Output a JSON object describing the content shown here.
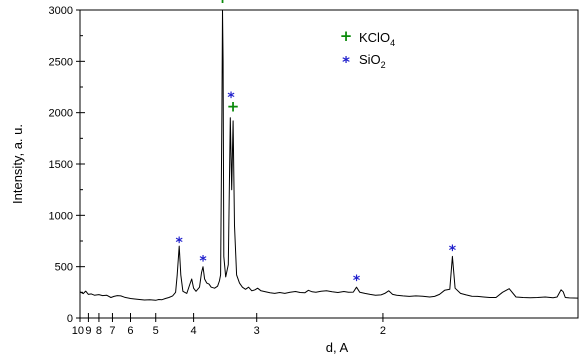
{
  "chart_data": {
    "type": "line",
    "title": "",
    "xlabel": "d, A",
    "ylabel": "Intensity, a. u.",
    "x_scale": "reciprocal",
    "xlim": [
      10,
      1.32
    ],
    "ylim": [
      0,
      3000
    ],
    "y_ticks": [
      0,
      500,
      1000,
      1500,
      2000,
      2500,
      3000
    ],
    "x_ticks": [
      10,
      9,
      8,
      7,
      6,
      5,
      4,
      3,
      2
    ],
    "x_tick_labels": [
      "10",
      "9",
      "8",
      "7",
      "6",
      "5",
      "4",
      "3",
      "2"
    ],
    "grid": false,
    "line_color": "#000000",
    "legend_position": "top-right",
    "legend": [
      {
        "symbol": "+",
        "color": "#0a8a0a",
        "label": "KClO",
        "sub": "4"
      },
      {
        "symbol": "*",
        "color": "#1f1fcc",
        "label": "SiO",
        "sub": "2"
      }
    ],
    "series": [
      {
        "points": [
          [
            10,
            255
          ],
          [
            9.6,
            238
          ],
          [
            9.3,
            262
          ],
          [
            9.0,
            230
          ],
          [
            8.7,
            235
          ],
          [
            8.4,
            222
          ],
          [
            8.0,
            228
          ],
          [
            7.7,
            218
          ],
          [
            7.4,
            222
          ],
          [
            7.1,
            200
          ],
          [
            6.9,
            210
          ],
          [
            6.7,
            218
          ],
          [
            6.5,
            215
          ],
          [
            6.3,
            203
          ],
          [
            6.0,
            190
          ],
          [
            5.8,
            185
          ],
          [
            5.6,
            180
          ],
          [
            5.4,
            175
          ],
          [
            5.2,
            178
          ],
          [
            5.0,
            172
          ],
          [
            4.9,
            180
          ],
          [
            4.8,
            178
          ],
          [
            4.7,
            190
          ],
          [
            4.6,
            200
          ],
          [
            4.5,
            215
          ],
          [
            4.42,
            250
          ],
          [
            4.38,
            420
          ],
          [
            4.33,
            700
          ],
          [
            4.29,
            420
          ],
          [
            4.24,
            260
          ],
          [
            4.15,
            240
          ],
          [
            4.08,
            330
          ],
          [
            4.04,
            380
          ],
          [
            4.0,
            290
          ],
          [
            3.95,
            260
          ],
          [
            3.88,
            300
          ],
          [
            3.84,
            440
          ],
          [
            3.81,
            500
          ],
          [
            3.78,
            380
          ],
          [
            3.74,
            340
          ],
          [
            3.7,
            330
          ],
          [
            3.66,
            300
          ],
          [
            3.6,
            290
          ],
          [
            3.55,
            310
          ],
          [
            3.52,
            360
          ],
          [
            3.5,
            420
          ],
          [
            3.48,
            2000
          ],
          [
            3.47,
            3000
          ],
          [
            3.46,
            2500
          ],
          [
            3.45,
            600
          ],
          [
            3.42,
            400
          ],
          [
            3.38,
            520
          ],
          [
            3.35,
            1950
          ],
          [
            3.33,
            1250
          ],
          [
            3.31,
            1920
          ],
          [
            3.29,
            900
          ],
          [
            3.26,
            420
          ],
          [
            3.22,
            340
          ],
          [
            3.18,
            300
          ],
          [
            3.14,
            280
          ],
          [
            3.1,
            300
          ],
          [
            3.06,
            265
          ],
          [
            3.02,
            275
          ],
          [
            2.99,
            290
          ],
          [
            2.95,
            265
          ],
          [
            2.9,
            255
          ],
          [
            2.85,
            245
          ],
          [
            2.8,
            240
          ],
          [
            2.75,
            248
          ],
          [
            2.7,
            240
          ],
          [
            2.65,
            250
          ],
          [
            2.6,
            258
          ],
          [
            2.56,
            248
          ],
          [
            2.52,
            245
          ],
          [
            2.49,
            270
          ],
          [
            2.46,
            255
          ],
          [
            2.43,
            250
          ],
          [
            2.39,
            260
          ],
          [
            2.35,
            265
          ],
          [
            2.31,
            255
          ],
          [
            2.27,
            248
          ],
          [
            2.23,
            258
          ],
          [
            2.2,
            250
          ],
          [
            2.17,
            252
          ],
          [
            2.15,
            300
          ],
          [
            2.13,
            250
          ],
          [
            2.1,
            240
          ],
          [
            2.07,
            230
          ],
          [
            2.04,
            222
          ],
          [
            2.01,
            225
          ],
          [
            1.99,
            240
          ],
          [
            1.97,
            265
          ],
          [
            1.95,
            230
          ],
          [
            1.93,
            222
          ],
          [
            1.9,
            215
          ],
          [
            1.87,
            210
          ],
          [
            1.84,
            215
          ],
          [
            1.81,
            212
          ],
          [
            1.78,
            205
          ],
          [
            1.76,
            210
          ],
          [
            1.74,
            230
          ],
          [
            1.72,
            270
          ],
          [
            1.7,
            280
          ],
          [
            1.69,
            600
          ],
          [
            1.68,
            290
          ],
          [
            1.66,
            240
          ],
          [
            1.64,
            225
          ],
          [
            1.62,
            212
          ],
          [
            1.6,
            210
          ],
          [
            1.58,
            205
          ],
          [
            1.56,
            200
          ],
          [
            1.54,
            200
          ],
          [
            1.52,
            250
          ],
          [
            1.5,
            285
          ],
          [
            1.48,
            205
          ],
          [
            1.46,
            200
          ],
          [
            1.44,
            198
          ],
          [
            1.42,
            200
          ],
          [
            1.4,
            205
          ],
          [
            1.38,
            198
          ],
          [
            1.37,
            205
          ],
          [
            1.36,
            275
          ],
          [
            1.355,
            255
          ],
          [
            1.35,
            200
          ],
          [
            1.34,
            196
          ],
          [
            1.33,
            195
          ],
          [
            1.32,
            194
          ]
        ]
      }
    ],
    "annotations": [
      {
        "symbol": "+",
        "color": "#0a8a0a",
        "x": 3.47,
        "y": 3115
      },
      {
        "symbol": "+",
        "color": "#0a8a0a",
        "x": 3.31,
        "y": 2060
      },
      {
        "symbol": "*",
        "color": "#1f1fcc",
        "x": 3.34,
        "y": 2200
      },
      {
        "symbol": "*",
        "color": "#1f1fcc",
        "x": 4.33,
        "y": 790
      },
      {
        "symbol": "*",
        "color": "#1f1fcc",
        "x": 3.81,
        "y": 610
      },
      {
        "symbol": "*",
        "color": "#1f1fcc",
        "x": 2.15,
        "y": 420
      },
      {
        "symbol": "*",
        "color": "#1f1fcc",
        "x": 1.69,
        "y": 710
      }
    ]
  }
}
